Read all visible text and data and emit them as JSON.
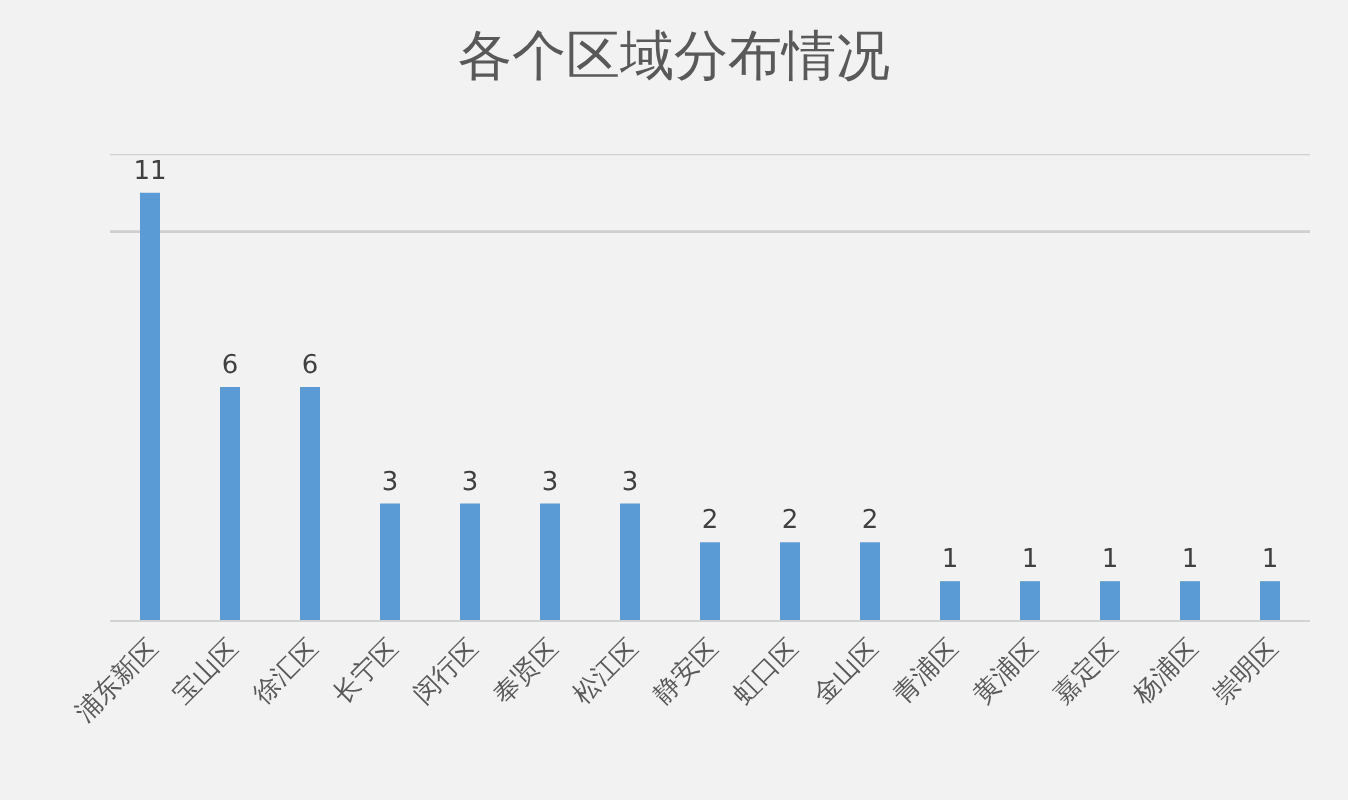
{
  "chart_data": {
    "type": "bar",
    "title": "各个区域分布情况",
    "categories": [
      "浦东新区",
      "宝山区",
      "徐汇区",
      "长宁区",
      "闵行区",
      "奉贤区",
      "松江区",
      "静安区",
      "虹口区",
      "金山区",
      "青浦区",
      "黄浦区",
      "嘉定区",
      "杨浦区",
      "崇明区"
    ],
    "values": [
      11,
      6,
      6,
      3,
      3,
      3,
      3,
      2,
      2,
      2,
      1,
      1,
      1,
      1,
      1
    ],
    "color": "#5b9bd5",
    "ylim": [
      0,
      12
    ],
    "ref_lines": [
      {
        "axis": "y",
        "value": 10,
        "color": "#cfcfcf"
      },
      {
        "axis": "y",
        "value": 12,
        "color": "#cfcfcf"
      }
    ],
    "tick_labels": "x",
    "data_labels": true
  }
}
